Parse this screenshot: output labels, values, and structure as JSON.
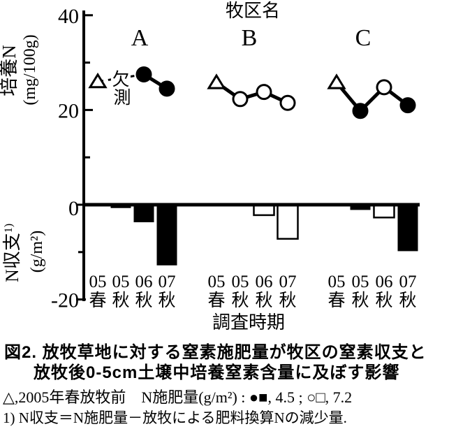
{
  "figure": {
    "paddock_header": "牧区名",
    "group_names": [
      "A",
      "B",
      "C"
    ],
    "top_axis_title": "培養N",
    "top_axis_unit": "(mg/100g)",
    "bottom_axis_title": "N収支",
    "bottom_axis_sup": "1)",
    "bottom_axis_unit": "(g/m²)",
    "x_axis_title": "調査時期",
    "missing_note": "欠測"
  },
  "caption": {
    "line1": "図2. 放牧草地に対する窒素施肥量が牧区の窒素収支と",
    "line2": "放牧後0-5cm土壌中培養窒素含量に及ぼす影響"
  },
  "legend": {
    "text": "△,2005年春放牧前　N施肥量(g/m²) : ●■, 4.5 ; ○□, 7.2"
  },
  "footnote": "1) N収支＝N施肥量－放牧による肥料換算Nの減少量.",
  "chart_data": {
    "type": "combo-line-bar",
    "title": "牧区名",
    "xlabel": "調査時期",
    "ylabel_top": "培養N (mg/100g)",
    "ylabel_bottom": "N収支 (g/m²)",
    "ylim": [
      -20,
      40
    ],
    "y_major_ticks": [
      40,
      20,
      0,
      -20
    ],
    "y_minor_ticks": [
      30,
      10,
      -10
    ],
    "x_categories": {
      "years": [
        "05",
        "05",
        "06",
        "07"
      ],
      "seasons": [
        "春",
        "秋",
        "秋",
        "秋"
      ]
    },
    "groups": [
      {
        "name": "A",
        "line_points": [
          {
            "slot": 0,
            "marker": "open-triangle",
            "value": 26.0
          },
          {
            "slot": 2,
            "marker": "filled-circle",
            "value": 27.5
          },
          {
            "slot": 3,
            "marker": "filled-circle",
            "value": 24.5
          }
        ],
        "missing": {
          "slot": 1,
          "label": "欠測"
        },
        "bars": [
          {
            "slot": 1,
            "style": "filled",
            "value": -0.7
          },
          {
            "slot": 2,
            "style": "filled",
            "value": -3.7
          },
          {
            "slot": 3,
            "style": "filled",
            "value": -12.8
          }
        ]
      },
      {
        "name": "B",
        "line_points": [
          {
            "slot": 0,
            "marker": "open-triangle",
            "value": 25.8
          },
          {
            "slot": 1,
            "marker": "open-circle",
            "value": 22.3
          },
          {
            "slot": 2,
            "marker": "open-circle",
            "value": 23.8
          },
          {
            "slot": 3,
            "marker": "open-circle",
            "value": 21.5
          }
        ],
        "bars": [
          {
            "slot": 2,
            "style": "open",
            "value": -2.2
          },
          {
            "slot": 3,
            "style": "open",
            "value": -7.2
          }
        ]
      },
      {
        "name": "C",
        "line_points": [
          {
            "slot": 0,
            "marker": "open-triangle",
            "value": 25.8
          },
          {
            "slot": 1,
            "marker": "filled-circle",
            "value": 19.8
          },
          {
            "slot": 2,
            "marker": "open-circle",
            "value": 24.8
          },
          {
            "slot": 3,
            "marker": "filled-circle",
            "value": 21.0
          }
        ],
        "bars": [
          {
            "slot": 1,
            "style": "filled",
            "value": -1.1
          },
          {
            "slot": 2,
            "style": "open",
            "value": -2.7
          },
          {
            "slot": 3,
            "style": "filled",
            "value": -9.8
          }
        ]
      }
    ],
    "legend_note": "△ = 2005年春放牧前 ; ●■ = N施肥量4.5 g/m² ; ○□ = N施肥量7.2 g/m²"
  }
}
